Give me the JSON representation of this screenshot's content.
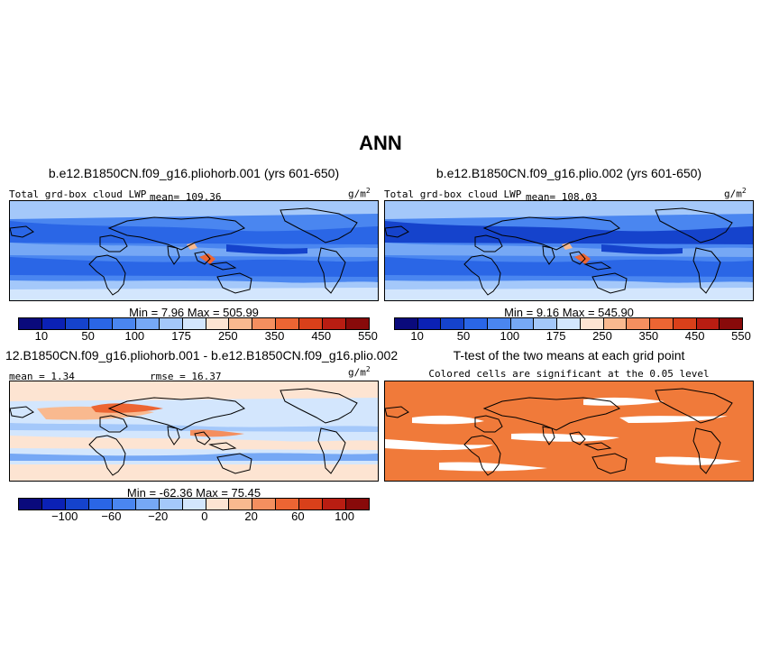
{
  "main_title": "ANN",
  "panels": [
    {
      "id": "p1",
      "title": "b.e12.B1850CN.f09_g16.pliohorb.001 (yrs 601-650)",
      "variable": "Total grd-box cloud LWP",
      "mean_text": "mean= 109.36",
      "units_base": "g/m",
      "units_exp": "2",
      "minmax_text": "Min =    7.96  Max = 505.99",
      "colorbar_labels": [
        "10",
        "50",
        "100",
        "175",
        "250",
        "350",
        "450",
        "550"
      ],
      "colorbar_colors": [
        "#0a0a7c",
        "#0b21b5",
        "#1543cc",
        "#2a66e6",
        "#4a86f0",
        "#76a8f5",
        "#a4c8fa",
        "#d3e6fd",
        "#fde4d2",
        "#f9b98f",
        "#f48f5f",
        "#ec6533",
        "#d9401a",
        "#b81d12",
        "#880a0a"
      ]
    },
    {
      "id": "p2",
      "title": "b.e12.B1850CN.f09_g16.plio.002 (yrs 601-650)",
      "variable": "Total grd-box cloud LWP",
      "mean_text": "mean= 108.03",
      "units_base": "g/m",
      "units_exp": "2",
      "minmax_text": "Min =    9.16  Max = 545.90",
      "colorbar_labels": [
        "10",
        "50",
        "100",
        "175",
        "250",
        "350",
        "450",
        "550"
      ],
      "colorbar_colors": [
        "#0a0a7c",
        "#0b21b5",
        "#1543cc",
        "#2a66e6",
        "#4a86f0",
        "#76a8f5",
        "#a4c8fa",
        "#d3e6fd",
        "#fde4d2",
        "#f9b98f",
        "#f48f5f",
        "#ec6533",
        "#d9401a",
        "#b81d12",
        "#880a0a"
      ]
    },
    {
      "id": "p3",
      "title": "12.B1850CN.f09_g16.pliohorb.001 - b.e12.B1850CN.f09_g16.plio.002",
      "mean_text": "mean =   1.34",
      "rmse_text": "rmse =  16.37",
      "units_base": "g/m",
      "units_exp": "2",
      "minmax_text": "Min = -62.36  Max =  75.45",
      "colorbar_labels": [
        "−100",
        "−60",
        "−20",
        "0",
        "20",
        "60",
        "100"
      ],
      "colorbar_colors": [
        "#0a0a7c",
        "#0b21b5",
        "#1543cc",
        "#2a66e6",
        "#4a86f0",
        "#76a8f5",
        "#a4c8fa",
        "#d3e6fd",
        "#fde4d2",
        "#f9b98f",
        "#f48f5f",
        "#ec6533",
        "#d9401a",
        "#b81d12",
        "#880a0a"
      ]
    },
    {
      "id": "p4",
      "title": "T-test of the two means at each grid point",
      "subtitle": "Colored cells are significant at the 0.05 level",
      "fill_color": "#f07a3a"
    }
  ],
  "chart_data": [
    {
      "type": "heatmap",
      "title": "b.e12.B1850CN.f09_g16.pliohorb.001 (yrs 601-650)",
      "variable": "Total grd-box cloud LWP",
      "units": "g/m2",
      "mean": 109.36,
      "min": 7.96,
      "max": 505.99,
      "levels": [
        10,
        50,
        100,
        175,
        250,
        350,
        450,
        550
      ]
    },
    {
      "type": "heatmap",
      "title": "b.e12.B1850CN.f09_g16.plio.002 (yrs 601-650)",
      "variable": "Total grd-box cloud LWP",
      "units": "g/m2",
      "mean": 108.03,
      "min": 9.16,
      "max": 545.9,
      "levels": [
        10,
        50,
        100,
        175,
        250,
        350,
        450,
        550
      ]
    },
    {
      "type": "heatmap",
      "title": "12.B1850CN.f09_g16.pliohorb.001 - b.e12.B1850CN.f09_g16.plio.002",
      "units": "g/m2",
      "mean": 1.34,
      "rmse": 16.37,
      "min": -62.36,
      "max": 75.45,
      "levels": [
        -100,
        -60,
        -20,
        0,
        20,
        60,
        100
      ]
    },
    {
      "type": "heatmap",
      "title": "T-test of the two means at each grid point",
      "subtitle": "Colored cells are significant at the 0.05 level",
      "significance_level": 0.05
    }
  ]
}
